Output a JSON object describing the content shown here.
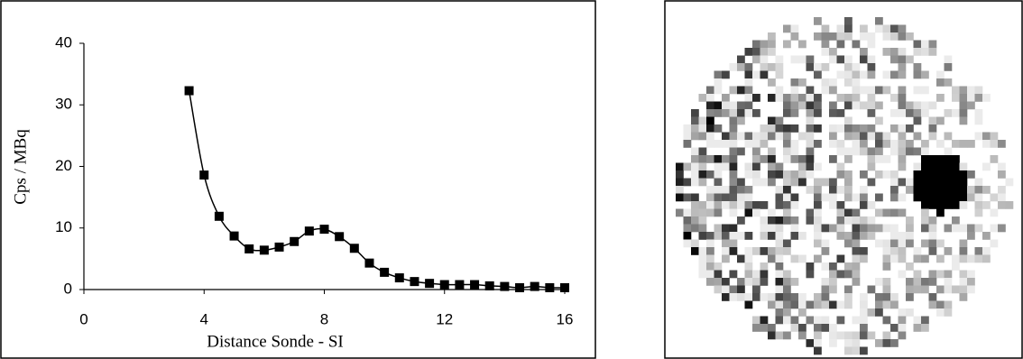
{
  "chart_data": {
    "type": "line",
    "xlabel": "Distance Sonde - SI",
    "ylabel": "Cps / MBq",
    "x": [
      3.5,
      4,
      4.5,
      5,
      5.5,
      6,
      6.5,
      7,
      7.5,
      8,
      8.5,
      9,
      9.5,
      10,
      10.5,
      11,
      11.5,
      12,
      12.5,
      13,
      13.5,
      14,
      14.5,
      15,
      15.5,
      16
    ],
    "values": [
      32.3,
      18.6,
      11.9,
      8.7,
      6.6,
      6.4,
      6.9,
      7.8,
      9.5,
      9.8,
      8.6,
      6.7,
      4.3,
      2.8,
      1.9,
      1.3,
      1.0,
      0.8,
      0.8,
      0.8,
      0.6,
      0.5,
      0.3,
      0.5,
      0.3,
      0.3
    ],
    "color": "#000000",
    "marker": "square",
    "xlim": [
      0,
      16
    ],
    "xticks": [
      0,
      4,
      8,
      12,
      16
    ],
    "ylim": [
      0,
      40
    ],
    "yticks": [
      0,
      10,
      20,
      30,
      40
    ],
    "grid": false
  }
}
